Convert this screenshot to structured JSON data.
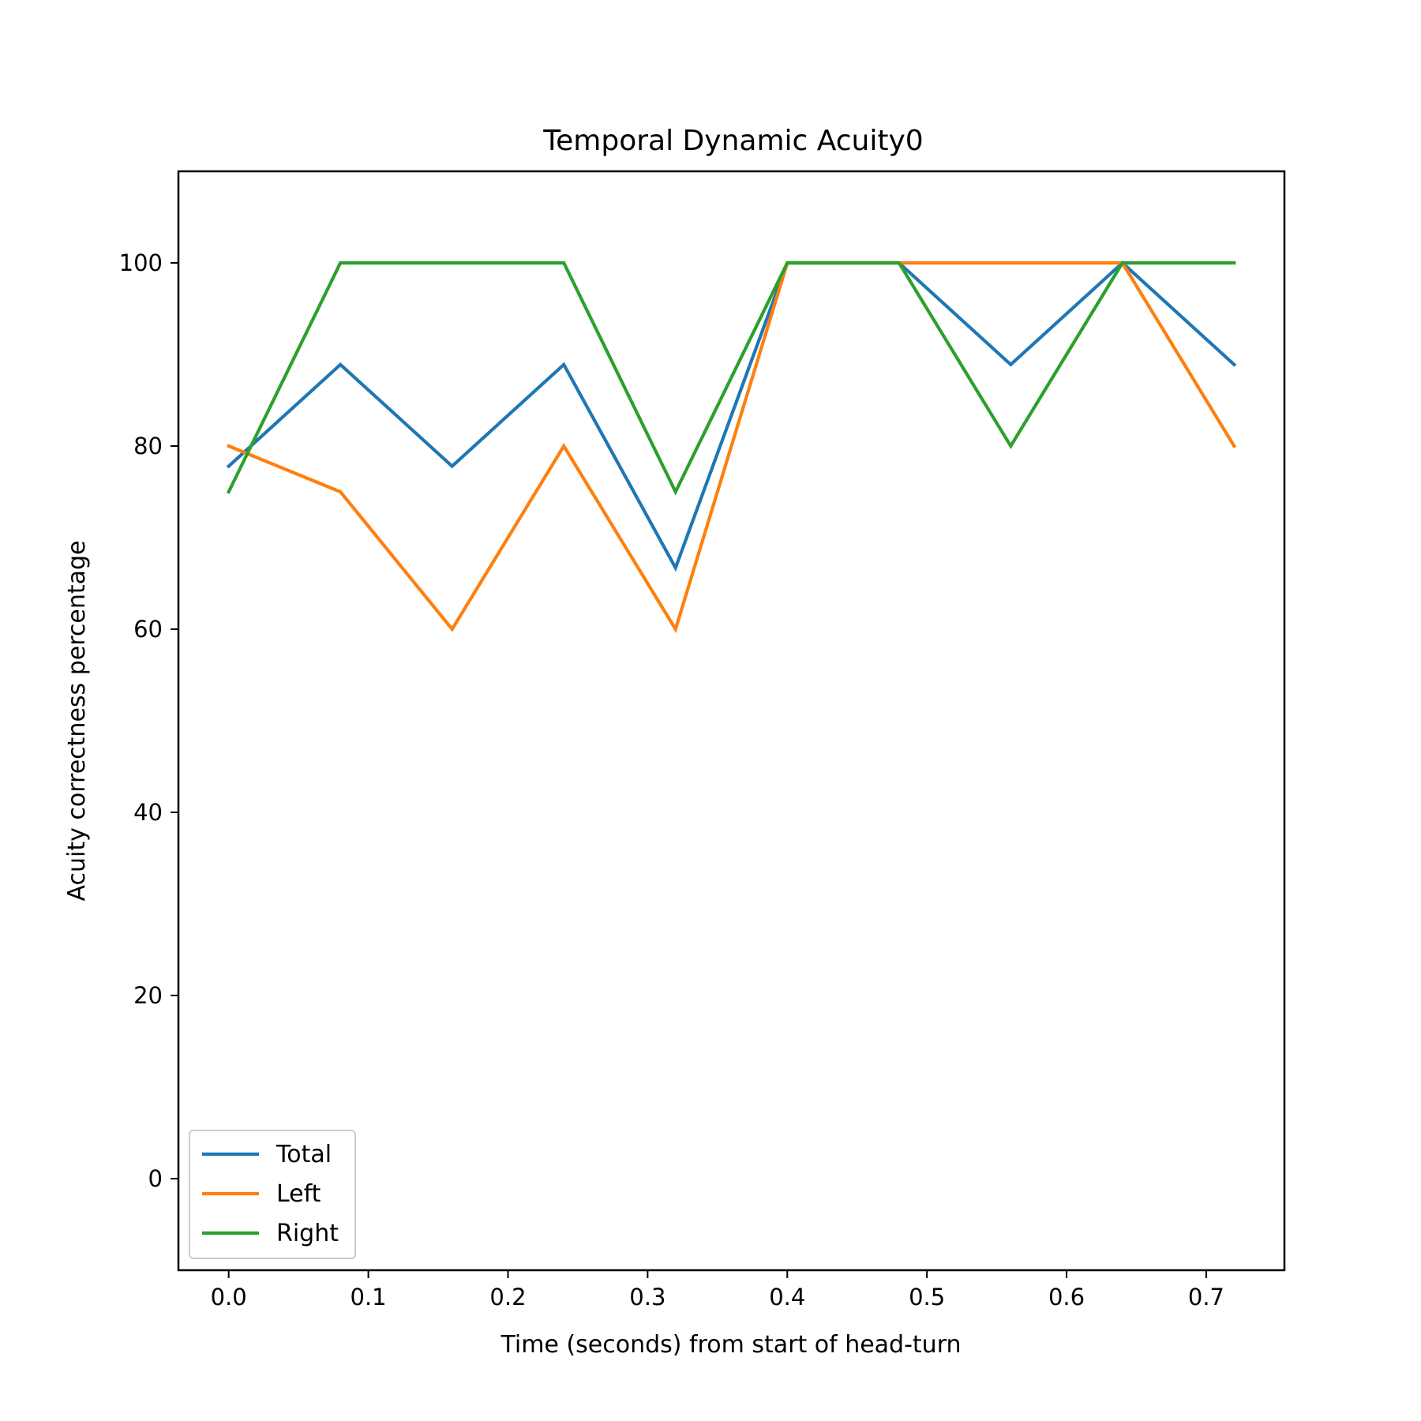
{
  "chart_data": {
    "type": "line",
    "title": "Temporal Dynamic Acuity0",
    "xlabel": "Time (seconds) from start of head-turn",
    "ylabel": "Acuity correctness percentage",
    "xlim": [
      -0.036,
      0.756
    ],
    "ylim": [
      -10,
      110
    ],
    "x_ticks": [
      0.0,
      0.1,
      0.2,
      0.3,
      0.4,
      0.5,
      0.6,
      0.7
    ],
    "x_tick_labels": [
      "0.0",
      "0.1",
      "0.2",
      "0.3",
      "0.4",
      "0.5",
      "0.6",
      "0.7"
    ],
    "y_ticks": [
      0,
      20,
      40,
      60,
      80,
      100
    ],
    "y_tick_labels": [
      "0",
      "20",
      "40",
      "60",
      "80",
      "100"
    ],
    "x": [
      0.0,
      0.08,
      0.16,
      0.24,
      0.32,
      0.4,
      0.48,
      0.56,
      0.64,
      0.72
    ],
    "series": [
      {
        "name": "Total",
        "color": "#1f77b4",
        "values": [
          77.8,
          88.9,
          77.8,
          88.9,
          66.7,
          100,
          100,
          88.9,
          100,
          88.9
        ]
      },
      {
        "name": "Left",
        "color": "#ff7f0e",
        "values": [
          80,
          75,
          60,
          80,
          60,
          100,
          100,
          100,
          100,
          80
        ]
      },
      {
        "name": "Right",
        "color": "#2ca02c",
        "values": [
          75,
          100,
          100,
          100,
          75,
          100,
          100,
          80,
          100,
          100
        ]
      }
    ],
    "grid": false,
    "legend": {
      "position": "lower-left",
      "entries": [
        "Total",
        "Left",
        "Right"
      ]
    }
  }
}
